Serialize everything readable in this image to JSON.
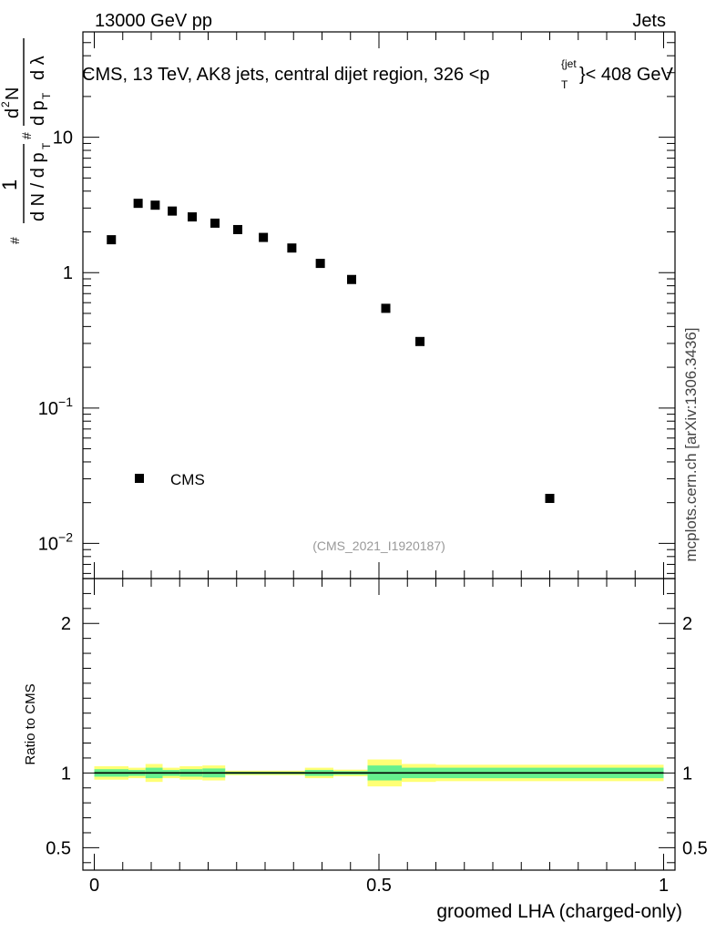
{
  "header": {
    "energy_label": "13000 GeV pp",
    "process_label": "Jets"
  },
  "side_label": "mcplots.cern.ch [arXiv:1306.3436]",
  "watermark": "(CMS_2021_I1920187)",
  "chart_data": [
    {
      "type": "scatter",
      "title": "CMS, 13 TeV, AK8 jets, central dijet region, 326 <p_T^{jet}< 408 GeV",
      "ylabel": "1/(dN/dp_T) d^2N/(dp_T dλ)",
      "yscale": "log",
      "xlim": [
        -0.02,
        1.02
      ],
      "ylim": [
        0.0055,
        60
      ],
      "yticks": [
        {
          "value": 10,
          "label": "10"
        },
        {
          "value": 1,
          "label": "1"
        },
        {
          "value": 0.1,
          "label": "10",
          "exp": "−1"
        },
        {
          "value": 0.01,
          "label": "10",
          "exp": "−2"
        }
      ],
      "legend": {
        "position": "bottom-left",
        "entries": [
          "CMS"
        ]
      },
      "series": [
        {
          "name": "CMS",
          "color": "#000000",
          "marker": "square",
          "x": [
            0.03,
            0.077,
            0.107,
            0.137,
            0.172,
            0.212,
            0.252,
            0.297,
            0.347,
            0.397,
            0.452,
            0.512,
            0.572,
            0.8
          ],
          "y": [
            1.75,
            3.25,
            3.15,
            2.85,
            2.58,
            2.32,
            2.08,
            1.82,
            1.52,
            1.17,
            0.89,
            0.545,
            0.31,
            0.0215
          ]
        }
      ]
    },
    {
      "type": "area",
      "xlabel": "groomed LHA (charged-only)",
      "ylabel": "Ratio to CMS",
      "xlim": [
        -0.02,
        1.02
      ],
      "ylim": [
        0.35,
        2.3
      ],
      "xticks": [
        {
          "value": 0,
          "label": "0"
        },
        {
          "value": 0.5,
          "label": "0.5"
        },
        {
          "value": 1,
          "label": "1"
        }
      ],
      "yticks": [
        {
          "value": 2,
          "label": "2"
        },
        {
          "value": 1,
          "label": "1"
        },
        {
          "value": 0.5,
          "label": "0.5"
        }
      ],
      "reference_line": 1,
      "colors": {
        "inner_band": "#66f08e",
        "outer_band": "#ffff75",
        "line": "#000000"
      },
      "bins": [
        {
          "lo": 0.0,
          "hi": 0.06,
          "inner": 0.025,
          "outer": 0.045
        },
        {
          "lo": 0.06,
          "hi": 0.09,
          "inner": 0.02,
          "outer": 0.035
        },
        {
          "lo": 0.09,
          "hi": 0.12,
          "inner": 0.035,
          "outer": 0.06
        },
        {
          "lo": 0.12,
          "hi": 0.15,
          "inner": 0.02,
          "outer": 0.035
        },
        {
          "lo": 0.15,
          "hi": 0.19,
          "inner": 0.025,
          "outer": 0.045
        },
        {
          "lo": 0.19,
          "hi": 0.23,
          "inner": 0.03,
          "outer": 0.05
        },
        {
          "lo": 0.23,
          "hi": 0.37,
          "inner": 0.008,
          "outer": 0.015
        },
        {
          "lo": 0.37,
          "hi": 0.42,
          "inner": 0.02,
          "outer": 0.035
        },
        {
          "lo": 0.42,
          "hi": 0.48,
          "inner": 0.012,
          "outer": 0.022
        },
        {
          "lo": 0.48,
          "hi": 0.54,
          "inner": 0.05,
          "outer": 0.09
        },
        {
          "lo": 0.54,
          "hi": 0.6,
          "inner": 0.035,
          "outer": 0.06
        },
        {
          "lo": 0.6,
          "hi": 1.0,
          "inner": 0.035,
          "outer": 0.055
        }
      ]
    }
  ]
}
